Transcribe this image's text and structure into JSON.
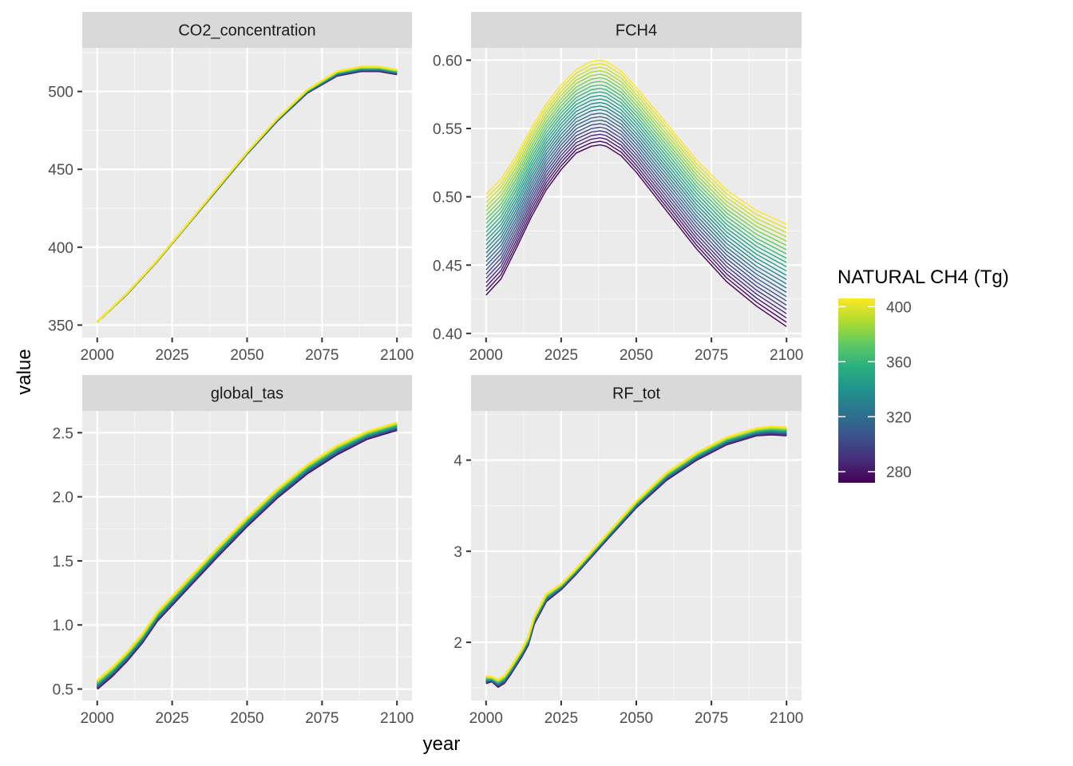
{
  "chart_data": {
    "type": "line",
    "xlabel": "year",
    "ylabel": "value",
    "legend": {
      "title": "NATURAL CH4 (Tg)",
      "position": "right",
      "min": 272,
      "max": 406,
      "ticks": [
        "280",
        "320",
        "360",
        "400"
      ],
      "tick_values": [
        280,
        320,
        360,
        400
      ],
      "colormap": "viridis"
    },
    "series_count": 25,
    "panels": [
      {
        "title": "CO2_concentration",
        "x_ticks": [
          "2000",
          "2025",
          "2050",
          "2075",
          "2100"
        ],
        "x_tick_values": [
          2000,
          2025,
          2050,
          2075,
          2100
        ],
        "xlim": [
          1995,
          2105
        ],
        "y_ticks": [
          "350",
          "400",
          "450",
          "500"
        ],
        "y_tick_values": [
          350,
          400,
          450,
          500
        ],
        "ylim": [
          342,
          528
        ],
        "x": [
          2000,
          2010,
          2020,
          2030,
          2040,
          2050,
          2060,
          2070,
          2080,
          2088,
          2094,
          2100
        ],
        "series_low": [
          352,
          370,
          391,
          414,
          437,
          460,
          481,
          499,
          510,
          513,
          513,
          511
        ],
        "series_high": [
          352,
          370.5,
          391.5,
          414.5,
          438,
          461,
          482.5,
          501,
          513,
          516,
          516,
          514
        ]
      },
      {
        "title": "FCH4",
        "x_ticks": [
          "2000",
          "2025",
          "2050",
          "2075",
          "2100"
        ],
        "x_tick_values": [
          2000,
          2025,
          2050,
          2075,
          2100
        ],
        "xlim": [
          1995,
          2105
        ],
        "y_ticks": [
          "0.40",
          "0.45",
          "0.50",
          "0.55",
          "0.60"
        ],
        "y_tick_values": [
          0.4,
          0.45,
          0.5,
          0.55,
          0.6
        ],
        "ylim": [
          0.397,
          0.609
        ],
        "x": [
          2000,
          2005,
          2010,
          2015,
          2020,
          2025,
          2030,
          2035,
          2038,
          2040,
          2045,
          2050,
          2060,
          2070,
          2080,
          2090,
          2100
        ],
        "series_low": [
          0.428,
          0.44,
          0.462,
          0.485,
          0.505,
          0.52,
          0.532,
          0.537,
          0.538,
          0.537,
          0.53,
          0.518,
          0.49,
          0.462,
          0.438,
          0.42,
          0.405
        ],
        "series_high": [
          0.502,
          0.513,
          0.53,
          0.55,
          0.568,
          0.582,
          0.593,
          0.599,
          0.6,
          0.599,
          0.592,
          0.58,
          0.554,
          0.527,
          0.505,
          0.49,
          0.48
        ]
      },
      {
        "title": "global_tas",
        "x_ticks": [
          "2000",
          "2025",
          "2050",
          "2075",
          "2100"
        ],
        "x_tick_values": [
          2000,
          2025,
          2050,
          2075,
          2100
        ],
        "xlim": [
          1995,
          2105
        ],
        "y_ticks": [
          "0.5",
          "1.0",
          "1.5",
          "2.0",
          "2.5"
        ],
        "y_tick_values": [
          0.5,
          1.0,
          1.5,
          2.0,
          2.5
        ],
        "ylim": [
          0.41,
          2.67
        ],
        "x": [
          2000,
          2005,
          2010,
          2015,
          2020,
          2030,
          2040,
          2050,
          2060,
          2070,
          2080,
          2090,
          2100
        ],
        "series_low": [
          0.5,
          0.6,
          0.72,
          0.86,
          1.03,
          1.28,
          1.53,
          1.77,
          1.99,
          2.18,
          2.33,
          2.45,
          2.52
        ],
        "series_high": [
          0.57,
          0.67,
          0.79,
          0.93,
          1.1,
          1.35,
          1.6,
          1.84,
          2.06,
          2.25,
          2.4,
          2.51,
          2.58
        ]
      },
      {
        "title": "RF_tot",
        "x_ticks": [
          "2000",
          "2025",
          "2050",
          "2075",
          "2100"
        ],
        "x_tick_values": [
          2000,
          2025,
          2050,
          2075,
          2100
        ],
        "xlim": [
          1995,
          2105
        ],
        "y_ticks": [
          "2",
          "3",
          "4"
        ],
        "y_tick_values": [
          2,
          3,
          4
        ],
        "ylim": [
          1.36,
          4.54
        ],
        "x": [
          2000,
          2002,
          2004,
          2006,
          2008,
          2012,
          2014,
          2016,
          2020,
          2025,
          2030,
          2040,
          2050,
          2060,
          2070,
          2080,
          2090,
          2095,
          2100
        ],
        "series_low": [
          1.55,
          1.57,
          1.51,
          1.55,
          1.64,
          1.85,
          1.97,
          2.2,
          2.45,
          2.58,
          2.75,
          3.12,
          3.48,
          3.78,
          4.0,
          4.17,
          4.27,
          4.28,
          4.27
        ],
        "series_high": [
          1.63,
          1.62,
          1.59,
          1.63,
          1.72,
          1.93,
          2.06,
          2.28,
          2.53,
          2.64,
          2.81,
          3.18,
          3.55,
          3.86,
          4.08,
          4.25,
          4.35,
          4.37,
          4.36
        ]
      }
    ]
  }
}
